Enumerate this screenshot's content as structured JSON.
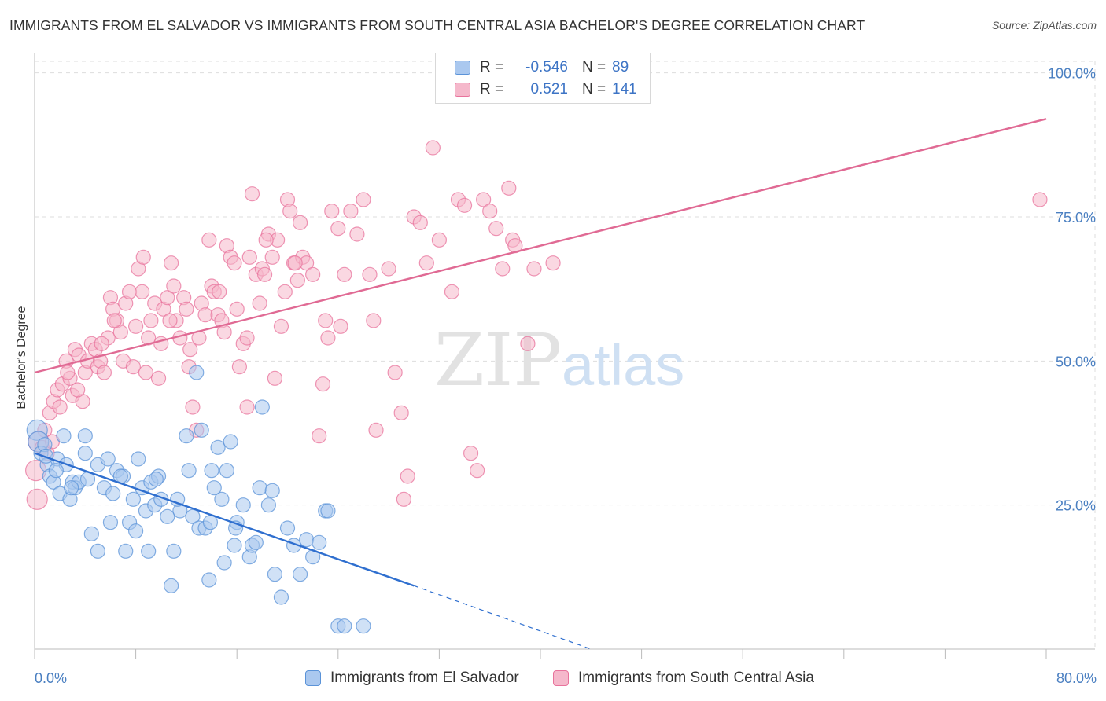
{
  "title": "IMMIGRANTS FROM EL SALVADOR VS IMMIGRANTS FROM SOUTH CENTRAL ASIA BACHELOR'S DEGREE CORRELATION CHART",
  "source": "Source: ZipAtlas.com",
  "watermark": "ZIPatlas",
  "colors": {
    "blue": "#5b93d8",
    "blue_fill": "#aac8ef",
    "pink": "#e8739c",
    "pink_fill": "#f5b8cb",
    "tick_text": "#4a7fc1"
  },
  "legend": {
    "rows": [
      {
        "r_label": "R =",
        "r_value": "-0.546",
        "n_label": "N =",
        "n_value": "89",
        "series": "blue"
      },
      {
        "r_label": "R =",
        "r_value": "0.521",
        "n_label": "N =",
        "n_value": "141",
        "series": "pink"
      }
    ]
  },
  "chart_data": {
    "type": "scatter",
    "title": "IMMIGRANTS FROM EL SALVADOR VS IMMIGRANTS FROM SOUTH CENTRAL ASIA BACHELOR'S DEGREE CORRELATION CHART",
    "xlabel": "",
    "ylabel": "Bachelor's Degree",
    "xlim": [
      0,
      80
    ],
    "ylim": [
      0,
      102
    ],
    "x_tick_labels": [
      "0.0%",
      "80.0%"
    ],
    "y_ticks": [
      25,
      50,
      75,
      100
    ],
    "y_tick_labels": [
      "25.0%",
      "50.0%",
      "75.0%",
      "100.0%"
    ],
    "grid": true,
    "legend_position": "top-center",
    "series": [
      {
        "name": "Immigrants from El Salvador",
        "color": "blue",
        "trend": {
          "x0": 0,
          "y0": 34,
          "x1": 30,
          "y1": 11,
          "dashed_to_x": 44,
          "dashed_to_y": 0
        },
        "points": [
          [
            0.2,
            38
          ],
          [
            0.3,
            36
          ],
          [
            0.5,
            34
          ],
          [
            0.8,
            35.5
          ],
          [
            1,
            32
          ],
          [
            1.2,
            30
          ],
          [
            1.5,
            29
          ],
          [
            1.8,
            33
          ],
          [
            2,
            27
          ],
          [
            2.3,
            37
          ],
          [
            2.5,
            32
          ],
          [
            2.8,
            26
          ],
          [
            3,
            29
          ],
          [
            3.2,
            28
          ],
          [
            4,
            34
          ],
          [
            4,
            37
          ],
          [
            4.5,
            20
          ],
          [
            5,
            32
          ],
          [
            5,
            17
          ],
          [
            5.5,
            28
          ],
          [
            5.8,
            33
          ],
          [
            6,
            22
          ],
          [
            6.2,
            27
          ],
          [
            6.5,
            31
          ],
          [
            7,
            30
          ],
          [
            7.2,
            17
          ],
          [
            7.5,
            22
          ],
          [
            7.8,
            26
          ],
          [
            8,
            20.5
          ],
          [
            8.2,
            33
          ],
          [
            8.5,
            28
          ],
          [
            8.8,
            24
          ],
          [
            9,
            17
          ],
          [
            9.2,
            29
          ],
          [
            9.5,
            25
          ],
          [
            9.8,
            30
          ],
          [
            10,
            26
          ],
          [
            10.5,
            23
          ],
          [
            10.8,
            11
          ],
          [
            11,
            17
          ],
          [
            11.5,
            24
          ],
          [
            12,
            37
          ],
          [
            12.2,
            31
          ],
          [
            12.5,
            23
          ],
          [
            12.8,
            48
          ],
          [
            13,
            21
          ],
          [
            13.2,
            38
          ],
          [
            13.5,
            21
          ],
          [
            13.8,
            12
          ],
          [
            14,
            31
          ],
          [
            14.2,
            28
          ],
          [
            14.5,
            35
          ],
          [
            14.8,
            26
          ],
          [
            15,
            15
          ],
          [
            15.2,
            31
          ],
          [
            15.5,
            36
          ],
          [
            15.8,
            18
          ],
          [
            16,
            22
          ],
          [
            16.5,
            25
          ],
          [
            17,
            16
          ],
          [
            17.2,
            18
          ],
          [
            17.5,
            18.5
          ],
          [
            17.8,
            28
          ],
          [
            18,
            42
          ],
          [
            18.5,
            25
          ],
          [
            19,
            13
          ],
          [
            19.5,
            9
          ],
          [
            20,
            21
          ],
          [
            20.5,
            18
          ],
          [
            21,
            13
          ],
          [
            21.5,
            19
          ],
          [
            22,
            16
          ],
          [
            22.5,
            18.5
          ],
          [
            23,
            24
          ],
          [
            24,
            4
          ],
          [
            24.5,
            4
          ],
          [
            26,
            4
          ],
          [
            3.5,
            29
          ],
          [
            6.8,
            30
          ],
          [
            9.6,
            29.5
          ],
          [
            11.3,
            26
          ],
          [
            13.9,
            22
          ],
          [
            15.9,
            21
          ],
          [
            18.8,
            27.5
          ],
          [
            1.7,
            31
          ],
          [
            2.9,
            28
          ],
          [
            4.2,
            29.5
          ],
          [
            0.9,
            33.5
          ],
          [
            23.2,
            24
          ]
        ]
      },
      {
        "name": "Immigrants from South Central Asia",
        "color": "pink",
        "trend": {
          "x0": 0,
          "y0": 48,
          "x1": 80,
          "y1": 92
        },
        "points": [
          [
            0.1,
            31
          ],
          [
            0.2,
            26
          ],
          [
            0.3,
            36
          ],
          [
            0.6,
            35
          ],
          [
            0.8,
            38
          ],
          [
            1,
            34
          ],
          [
            1.2,
            41
          ],
          [
            1.5,
            43
          ],
          [
            1.8,
            45
          ],
          [
            2,
            42
          ],
          [
            2.2,
            46
          ],
          [
            2.5,
            50
          ],
          [
            2.8,
            47
          ],
          [
            3,
            44
          ],
          [
            3.2,
            52
          ],
          [
            3.5,
            51
          ],
          [
            3.8,
            43
          ],
          [
            4,
            48
          ],
          [
            4.2,
            50
          ],
          [
            4.5,
            53
          ],
          [
            4.8,
            52
          ],
          [
            5,
            49
          ],
          [
            5.2,
            50
          ],
          [
            5.5,
            48
          ],
          [
            5.8,
            54
          ],
          [
            6,
            61
          ],
          [
            6.2,
            59
          ],
          [
            6.5,
            57
          ],
          [
            6.8,
            55
          ],
          [
            7,
            50
          ],
          [
            7.2,
            60
          ],
          [
            7.5,
            62
          ],
          [
            7.8,
            49
          ],
          [
            8,
            56
          ],
          [
            8.2,
            66
          ],
          [
            8.5,
            62
          ],
          [
            8.8,
            48
          ],
          [
            9,
            54
          ],
          [
            9.2,
            57
          ],
          [
            9.5,
            60
          ],
          [
            9.8,
            47
          ],
          [
            10,
            53
          ],
          [
            10.2,
            59
          ],
          [
            10.5,
            61
          ],
          [
            10.8,
            67
          ],
          [
            11,
            63
          ],
          [
            11.2,
            57
          ],
          [
            11.5,
            54
          ],
          [
            11.8,
            61
          ],
          [
            12,
            59
          ],
          [
            12.2,
            49
          ],
          [
            12.5,
            42
          ],
          [
            12.8,
            38
          ],
          [
            13,
            54
          ],
          [
            13.2,
            60
          ],
          [
            13.5,
            58
          ],
          [
            13.8,
            71
          ],
          [
            14,
            63
          ],
          [
            14.2,
            62
          ],
          [
            14.5,
            58
          ],
          [
            14.8,
            57
          ],
          [
            15,
            55
          ],
          [
            15.2,
            70
          ],
          [
            15.5,
            68
          ],
          [
            15.8,
            67
          ],
          [
            16,
            59
          ],
          [
            16.2,
            49
          ],
          [
            16.5,
            53
          ],
          [
            16.8,
            42
          ],
          [
            17,
            68
          ],
          [
            17.2,
            79
          ],
          [
            17.5,
            65
          ],
          [
            17.8,
            60
          ],
          [
            18,
            66
          ],
          [
            18.2,
            65
          ],
          [
            18.5,
            72
          ],
          [
            18.8,
            68
          ],
          [
            19,
            47
          ],
          [
            19.2,
            71
          ],
          [
            19.5,
            56
          ],
          [
            19.8,
            62
          ],
          [
            20,
            78
          ],
          [
            20.2,
            76
          ],
          [
            20.5,
            67
          ],
          [
            20.8,
            64
          ],
          [
            21,
            74
          ],
          [
            21.2,
            68
          ],
          [
            21.5,
            67
          ],
          [
            22,
            65
          ],
          [
            22.5,
            37
          ],
          [
            23,
            57
          ],
          [
            23.2,
            54
          ],
          [
            23.5,
            76
          ],
          [
            24,
            73
          ],
          [
            24.5,
            65
          ],
          [
            25,
            76
          ],
          [
            25.5,
            72
          ],
          [
            26,
            78
          ],
          [
            26.5,
            65
          ],
          [
            27,
            38
          ],
          [
            28,
            66
          ],
          [
            28.5,
            48
          ],
          [
            29,
            41
          ],
          [
            29.5,
            30
          ],
          [
            30,
            75
          ],
          [
            30.5,
            74
          ],
          [
            31,
            67
          ],
          [
            31.5,
            87
          ],
          [
            32,
            71
          ],
          [
            33,
            62
          ],
          [
            33.5,
            78
          ],
          [
            34,
            77
          ],
          [
            34.5,
            34
          ],
          [
            35,
            31
          ],
          [
            35.5,
            78
          ],
          [
            36,
            76
          ],
          [
            36.5,
            73
          ],
          [
            37,
            66
          ],
          [
            37.5,
            80
          ],
          [
            37.8,
            71
          ],
          [
            38,
            70
          ],
          [
            39,
            53
          ],
          [
            39.5,
            66
          ],
          [
            41,
            67
          ],
          [
            79.5,
            78
          ],
          [
            26.8,
            57
          ],
          [
            22.8,
            46
          ],
          [
            18.3,
            71
          ],
          [
            14.6,
            62
          ],
          [
            10.7,
            57
          ],
          [
            8.6,
            68
          ],
          [
            5.3,
            53
          ],
          [
            3.4,
            45
          ],
          [
            1.4,
            36
          ],
          [
            2.6,
            48
          ],
          [
            29.2,
            26
          ],
          [
            24.2,
            56
          ],
          [
            20.6,
            67
          ],
          [
            16.8,
            54
          ],
          [
            12.3,
            52
          ],
          [
            6.3,
            57
          ]
        ]
      }
    ]
  },
  "bottom_legend": [
    {
      "label": "Immigrants from El Salvador",
      "series": "blue"
    },
    {
      "label": "Immigrants from South Central Asia",
      "series": "pink"
    }
  ]
}
